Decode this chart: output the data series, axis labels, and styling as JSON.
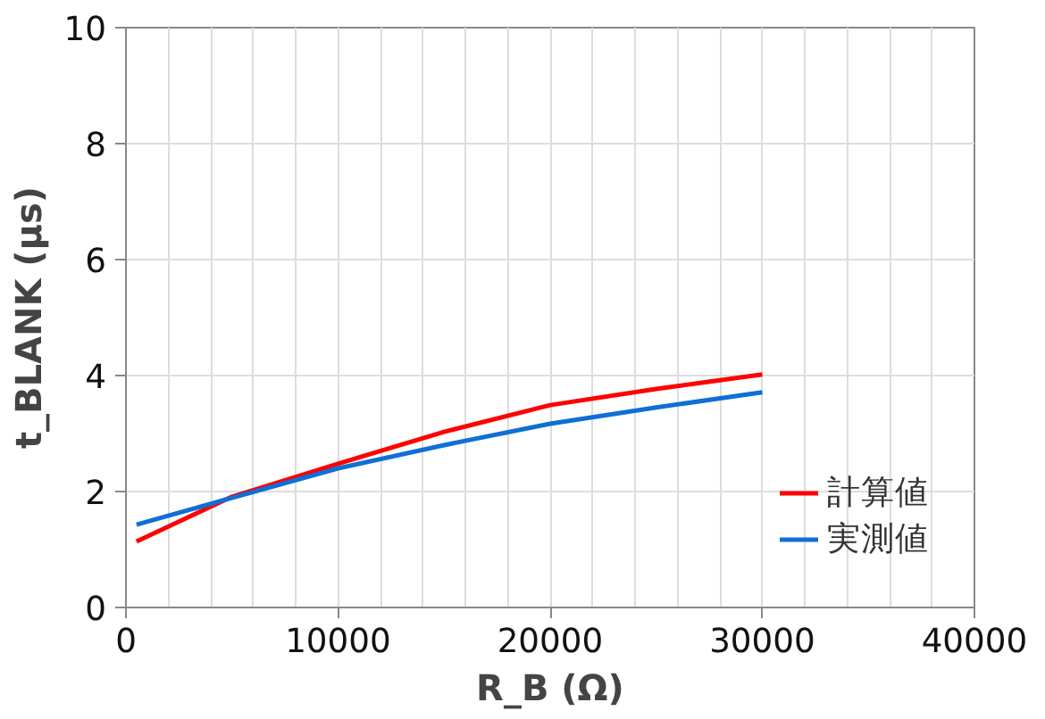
{
  "chart_data": {
    "type": "line",
    "xlabel": "R_B (Ω)",
    "ylabel": "t_BLANK (μs)",
    "x": [
      500,
      5000,
      10000,
      15000,
      20000,
      25000,
      30000
    ],
    "series": [
      {
        "name": "計算値",
        "color": "#ff0000",
        "values": [
          1.14,
          1.91,
          2.48,
          3.03,
          3.49,
          3.77,
          4.02
        ]
      },
      {
        "name": "実測値",
        "color": "#0f6fd6",
        "values": [
          1.43,
          1.89,
          2.4,
          2.8,
          3.17,
          3.45,
          3.71
        ]
      }
    ],
    "xlim": [
      0,
      40000
    ],
    "xticks": [
      0,
      10000,
      20000,
      30000,
      40000
    ],
    "ylim": [
      0,
      10
    ],
    "yticks": [
      0,
      2,
      4,
      6,
      8,
      10
    ],
    "grid": true,
    "legend": "bottom right",
    "marker": "none",
    "line_style": "solid"
  }
}
